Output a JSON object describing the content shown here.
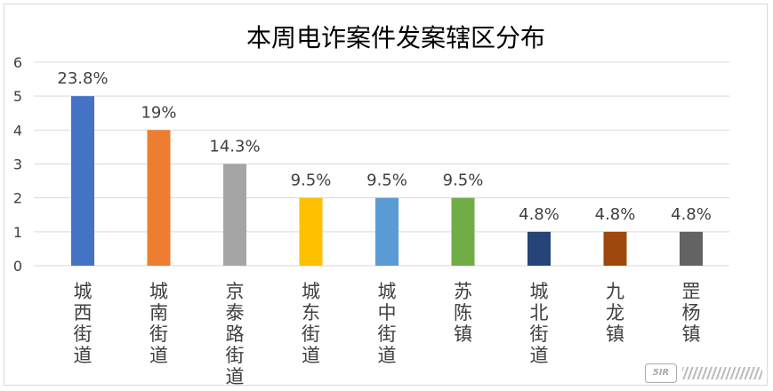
{
  "chart_data": {
    "type": "bar",
    "title": "本周电诈案件发案辖区分布",
    "categories": [
      "城西街道",
      "城南街道",
      "京泰路街道",
      "城东街道",
      "城中街道",
      "苏陈镇",
      "城北街道",
      "九龙镇",
      "罡杨镇"
    ],
    "values": [
      5,
      4,
      3,
      2,
      2,
      2,
      1,
      1,
      1
    ],
    "data_labels": [
      "23.8%",
      "19%",
      "14.3%",
      "9.5%",
      "9.5%",
      "9.5%",
      "4.8%",
      "4.8%",
      "4.8%"
    ],
    "colors": [
      "#4472C4",
      "#ED7D31",
      "#A5A5A5",
      "#FFC000",
      "#5B9BD5",
      "#70AD47",
      "#264478",
      "#9E480E",
      "#636363"
    ],
    "yticks": [
      "0",
      "1",
      "2",
      "3",
      "4",
      "5",
      "6"
    ],
    "ylim": [
      0,
      6
    ],
    "xlabel": "",
    "ylabel": "",
    "grid": true,
    "legend": "none"
  },
  "watermark": {
    "badge_icon": "site-logo-icon"
  }
}
